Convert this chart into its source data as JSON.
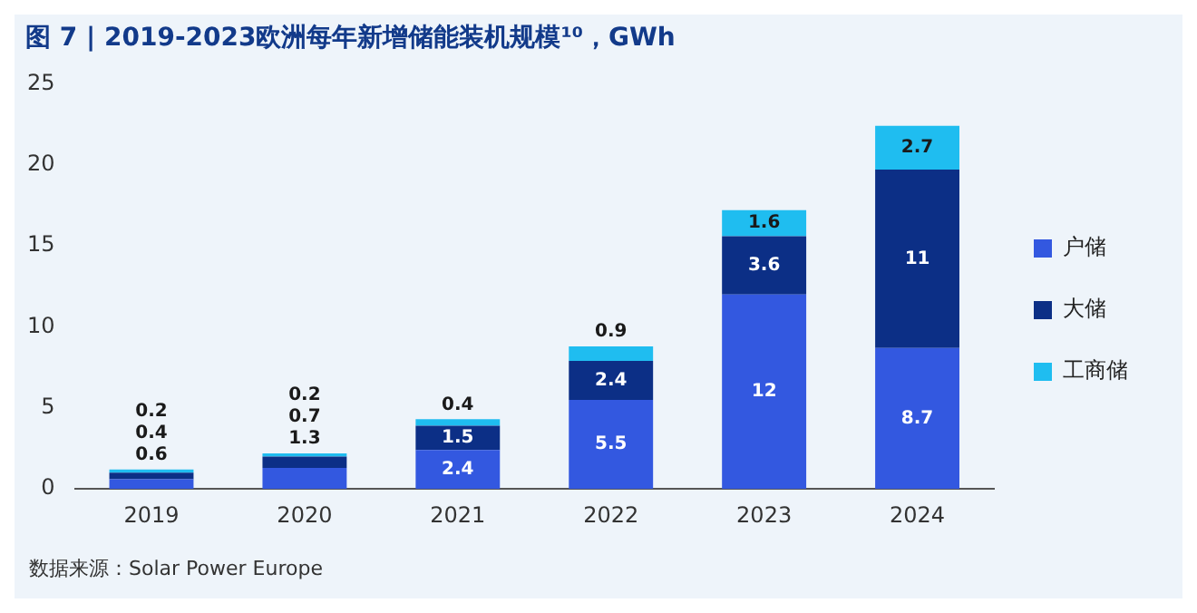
{
  "chart_data": {
    "type": "bar",
    "title": "图 7 | 2019-2023欧洲每年新增储能装机规模¹⁰，GWh",
    "categories": [
      "2019",
      "2020",
      "2021",
      "2022",
      "2023",
      "2024"
    ],
    "stacked": true,
    "series": [
      {
        "name": "户储",
        "color": "#3358e0",
        "values": [
          0.6,
          1.3,
          2.4,
          5.5,
          12,
          8.7
        ]
      },
      {
        "name": "大储",
        "color": "#0c2f86",
        "values": [
          0.4,
          0.7,
          1.5,
          2.4,
          3.6,
          11
        ]
      },
      {
        "name": "工商储",
        "color": "#1fbdf0",
        "values": [
          0.2,
          0.2,
          0.4,
          0.9,
          1.6,
          2.7
        ]
      }
    ],
    "ylim": [
      0,
      25
    ],
    "yticks": [
      0,
      5,
      10,
      15,
      20,
      25
    ],
    "grid": false,
    "legend": "right",
    "data_labels": true,
    "annotations": [
      "数据来源：Solar Power Europe"
    ]
  }
}
